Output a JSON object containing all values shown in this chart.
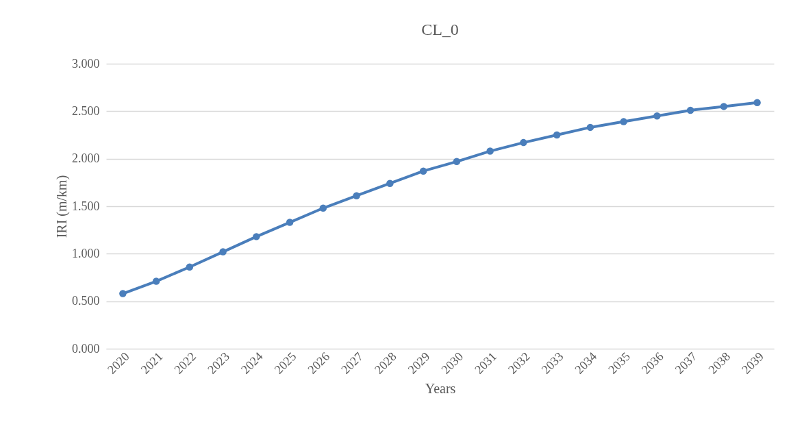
{
  "chart_data": {
    "type": "line",
    "title": "CL_0",
    "xlabel": "Years",
    "ylabel": "IRI (m/km)",
    "categories": [
      "2020",
      "2021",
      "2022",
      "2023",
      "2024",
      "2025",
      "2026",
      "2027",
      "2028",
      "2029",
      "2030",
      "2031",
      "2032",
      "2033",
      "2034",
      "2035",
      "2036",
      "2037",
      "2038",
      "2039"
    ],
    "series": [
      {
        "color": "#4a7ebb",
        "values": [
          0.58,
          0.71,
          0.86,
          1.02,
          1.18,
          1.33,
          1.48,
          1.61,
          1.74,
          1.87,
          1.97,
          2.08,
          2.17,
          2.25,
          2.33,
          2.39,
          2.45,
          2.51,
          2.55,
          2.59
        ]
      }
    ],
    "ylim": [
      0,
      3
    ],
    "yticks": [
      {
        "value": 0,
        "label": "0.000"
      },
      {
        "value": 0.5,
        "label": "0.500"
      },
      {
        "value": 1,
        "label": "1.000"
      },
      {
        "value": 1.5,
        "label": "1.500"
      },
      {
        "value": 2,
        "label": "2.000"
      },
      {
        "value": 2.5,
        "label": "2.500"
      },
      {
        "value": 3,
        "label": "3.000"
      }
    ],
    "grid": "y",
    "marker": "circle",
    "line_style": "solid"
  }
}
